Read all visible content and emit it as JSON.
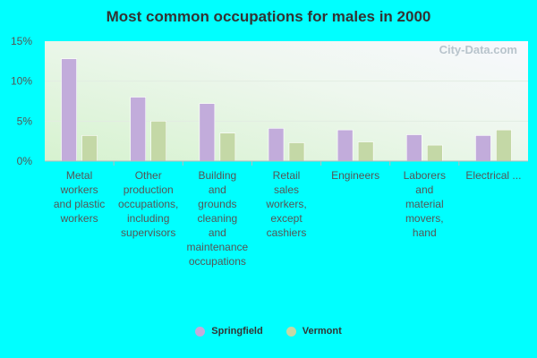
{
  "watermark": "City-Data.com",
  "colors": {
    "background": "#00FFFF",
    "springfield": "#C2ACDB",
    "vermont": "#C4D8A6"
  },
  "chart_data": {
    "type": "bar",
    "title": "Most common occupations for males in 2000",
    "xlabel": "",
    "ylabel": "",
    "ylim": [
      0,
      15
    ],
    "yticks": [
      "0%",
      "5%",
      "10%",
      "15%"
    ],
    "grid": true,
    "legend_position": "bottom",
    "categories": [
      [
        "Metal",
        "workers",
        "and plastic",
        "workers"
      ],
      [
        "Other",
        "production",
        "occupations,",
        "including",
        "supervisors"
      ],
      [
        "Building",
        "and",
        "grounds",
        "cleaning",
        "and",
        "maintenance",
        "occupations"
      ],
      [
        "Retail",
        "sales",
        "workers,",
        "except",
        "cashiers"
      ],
      [
        "Engineers"
      ],
      [
        "Laborers",
        "and",
        "material",
        "movers,",
        "hand"
      ],
      [
        "Electrical ..."
      ]
    ],
    "series": [
      {
        "name": "Springfield",
        "values": [
          12.8,
          8.0,
          7.2,
          4.1,
          3.9,
          3.3,
          3.2
        ]
      },
      {
        "name": "Vermont",
        "values": [
          3.2,
          5.0,
          3.5,
          2.3,
          2.4,
          2.0,
          3.9
        ]
      }
    ]
  }
}
